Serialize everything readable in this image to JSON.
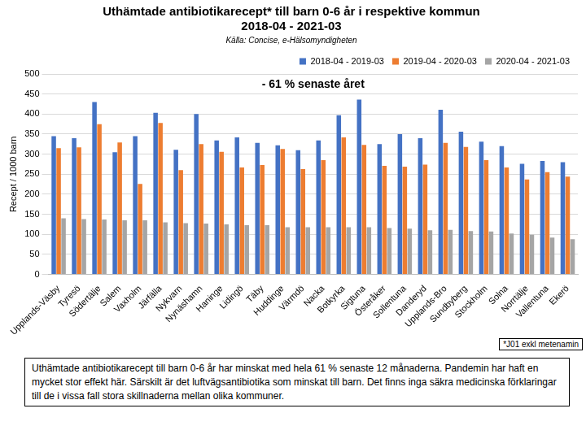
{
  "chart_data": {
    "type": "bar",
    "title": [
      "Uthämtade antibiotikarecept* till barn 0-6 år i respektive kommun",
      "2018-04 - 2021-03"
    ],
    "subtitle": "Källa: Concise, e-Hälsomyndigheten",
    "y_label": "Recept / 1000 barn",
    "annotation": "- 61 % senaste året",
    "footnote": "*J01 exkl metenamin",
    "caption": "Uthämtade antibiotikarecept till barn 0-6 år har minskat med hela 61 % senaste 12 månaderna. Pandemin har haft en mycket stor effekt här. Särskilt är det luftvägsantibiotika som minskat till barn. Det finns inga säkra medicinska förklaringar till de i vissa fall stora skillnaderna mellan olika kommuner.",
    "categories": [
      "Upplands-Väsby",
      "Tyresö",
      "Södertälje",
      "Salem",
      "Vaxholm",
      "Järfälla",
      "Nykvarn",
      "Nynäshamn",
      "Haninge",
      "Lidingö",
      "Täby",
      "Huddinge",
      "Värmdö",
      "Nacka",
      "Botkyrka",
      "Sigtuna",
      "Österåker",
      "Sollentuna",
      "Danderyd",
      "Upplands-Bro",
      "Sundbyberg",
      "Stockholm",
      "Solna",
      "Norrtälje",
      "Vallentuna",
      "Ekerö"
    ],
    "series": [
      {
        "name": "2018-04 - 2019-03",
        "color": "#4472c4",
        "values": [
          345,
          340,
          430,
          305,
          345,
          403,
          311,
          400,
          334,
          342,
          328,
          322,
          310,
          334,
          397,
          436,
          325,
          350,
          340,
          411,
          356,
          331,
          320,
          276,
          283,
          280
        ]
      },
      {
        "name": "2019-04 - 2020-03",
        "color": "#ed7d31",
        "values": [
          315,
          317,
          375,
          329,
          226,
          378,
          260,
          325,
          306,
          267,
          273,
          313,
          263,
          285,
          342,
          323,
          271,
          269,
          274,
          328,
          318,
          285,
          267,
          237,
          255,
          244
        ]
      },
      {
        "name": "2020-04 - 2021-03",
        "color": "#a5a5a5",
        "values": [
          140,
          138,
          137,
          135,
          135,
          130,
          128,
          127,
          125,
          123,
          123,
          118,
          118,
          118,
          118,
          118,
          116,
          114,
          110,
          111,
          108,
          107,
          102,
          99,
          92,
          88
        ]
      }
    ],
    "ylim": [
      0,
      500
    ],
    "yticks": [
      0,
      50,
      100,
      150,
      200,
      250,
      300,
      350,
      400,
      450,
      500
    ],
    "grid": true,
    "legend": "top-right"
  }
}
